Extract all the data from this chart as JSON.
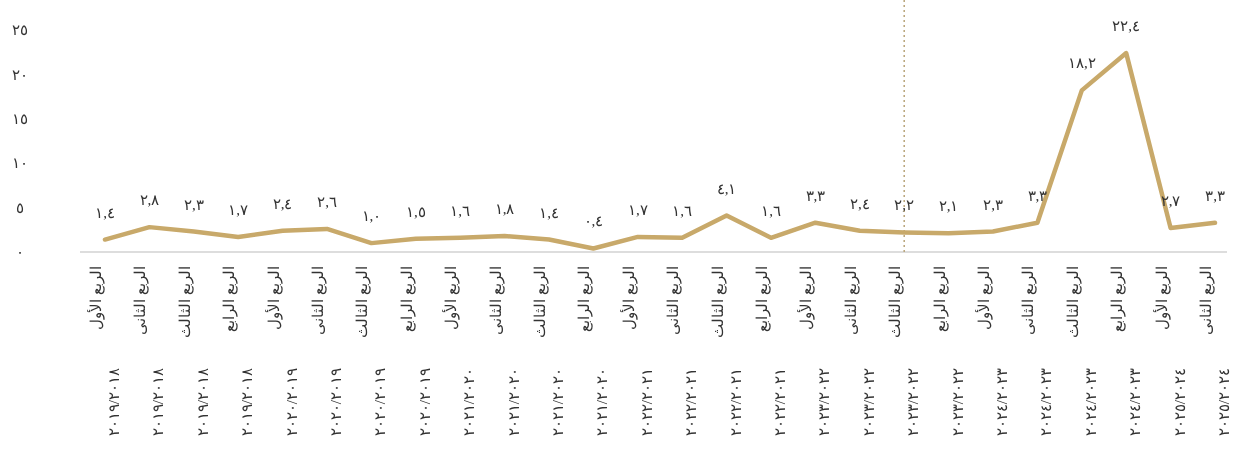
{
  "chart_data": {
    "type": "line",
    "categories": [
      "الربع الأول ٢٠١٩/٢٠١٨",
      "الربع الثانى ٢٠١٩/٢٠١٨",
      "الربع الثالث ٢٠١٩/٢٠١٨",
      "الربع الرابع ٢٠١٩/٢٠١٨",
      "الربع الأول ٢٠٢٠/٢٠١٩",
      "الربع الثانى ٢٠٢٠/٢٠١٩",
      "الربع الثالث ٢٠٢٠/٢٠١٩",
      "الربع الرابع ٢٠٢٠/٢٠١٩",
      "الربع الأول ٢٠٢١/٢٠٢٠",
      "الربع الثانى ٢٠٢١/٢٠٢٠",
      "الربع الثالث ٢٠٢١/٢٠٢٠",
      "الربع الرابع ٢٠٢١/٢٠٢٠",
      "الربع الأول ٢٠٢٢/٢٠٢١",
      "الربع الثانى ٢٠٢٢/٢٠٢١",
      "الربع الثالث ٢٠٢٢/٢٠٢١",
      "الربع الرابع ٢٠٢٢/٢٠٢١",
      "الربع الأول ٢٠٢٣/٢٠٢٢",
      "الربع الثانى ٢٠٢٣/٢٠٢٢",
      "الربع الثالث ٢٠٢٣/٢٠٢٢",
      "الربع الرابع ٢٠٢٣/٢٠٢٢",
      "الربع الأول ٢٠٢٤/٢٠٢٣",
      "الربع الثانى ٢٠٢٤/٢٠٢٣",
      "الربع الثالث ٢٠٢٤/٢٠٢٣",
      "الربع الرابع ٢٠٢٤/٢٠٢٣",
      "الربع الأول ٢٠٢٥/٢٠٢٤",
      "الربع الثانى ٢٠٢٥/٢٠٢٤"
    ],
    "series": [
      {
        "color": "#c8a96a",
        "values": [
          1.4,
          2.8,
          2.3,
          1.7,
          2.4,
          2.6,
          1.0,
          1.5,
          1.6,
          1.8,
          1.4,
          0.4,
          1.7,
          1.6,
          4.1,
          1.6,
          3.3,
          2.4,
          2.2,
          2.1,
          2.3,
          3.3,
          18.2,
          22.4,
          2.7,
          3.3
        ],
        "value_labels": [
          "١,٤",
          "٢,٨",
          "٢,٣",
          "١,٧",
          "٢,٤",
          "٢,٦",
          "١,٠",
          "١,٥",
          "١,٦",
          "١,٨",
          "١,٤",
          "٠,٤",
          "١,٧",
          "١,٦",
          "٤,١",
          "١,٦",
          "٣,٣",
          "٢,٤",
          "٢,٢",
          "٢,١",
          "٢,٣",
          "٣,٣",
          "١٨,٢",
          "٢٢,٤",
          "٢,٧",
          "٣,٣"
        ]
      }
    ],
    "ylim": [
      0,
      25
    ],
    "yticks": [
      {
        "value": 0,
        "label": "٠"
      },
      {
        "value": 5,
        "label": "٥"
      },
      {
        "value": 10,
        "label": "١٠"
      },
      {
        "value": 15,
        "label": "١٥"
      },
      {
        "value": 20,
        "label": "٢٠"
      },
      {
        "value": 25,
        "label": "٢٥"
      }
    ],
    "ref_lines": [
      {
        "axis": "x",
        "value": "الربع الثالث ٢٠٢٣/٢٠٢٢",
        "color": "#b8a47a",
        "line_style": "dotted"
      }
    ],
    "grid": false,
    "marker": "none",
    "line_style": "solid"
  }
}
